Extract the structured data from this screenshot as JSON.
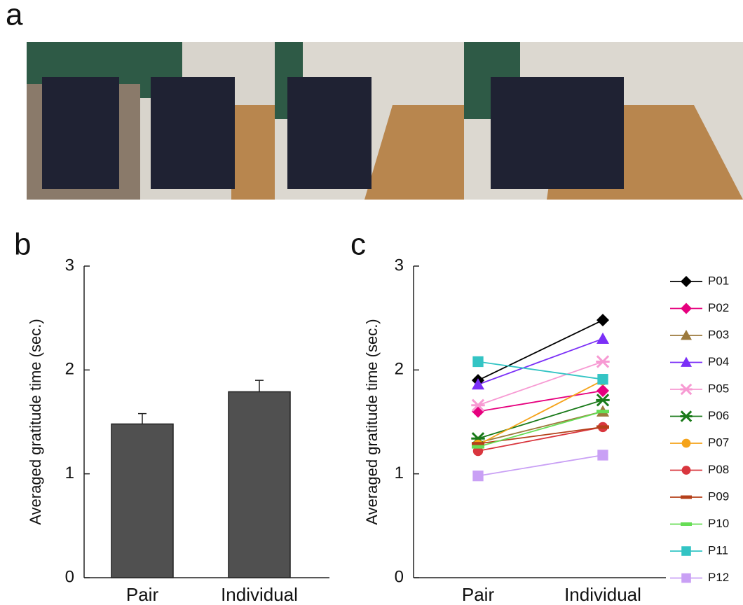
{
  "panel_labels": [
    "a",
    "b",
    "c"
  ],
  "chart_data": [
    {
      "type": "bar",
      "ylabel": "Averaged gratitude time (sec.)",
      "categories": [
        "Pair",
        "Individual"
      ],
      "values": [
        1.48,
        1.79
      ],
      "errors": [
        0.1,
        0.11
      ],
      "color": "#505050",
      "ylim": [
        0,
        3
      ],
      "yticks": [
        0,
        1,
        2,
        3
      ]
    },
    {
      "type": "line",
      "ylabel": "Averaged gratitude time (sec.)",
      "categories": [
        "Pair",
        "Individual"
      ],
      "ylim": [
        0,
        3
      ],
      "yticks": [
        0,
        1,
        2,
        3
      ],
      "series": [
        {
          "name": "P01",
          "color": "#000000",
          "marker": "diamond",
          "values": [
            1.9,
            2.48
          ]
        },
        {
          "name": "P02",
          "color": "#e6007e",
          "marker": "diamond",
          "values": [
            1.6,
            1.8
          ]
        },
        {
          "name": "P03",
          "color": "#9c7a3c",
          "marker": "triangle",
          "values": [
            1.3,
            1.6
          ]
        },
        {
          "name": "P04",
          "color": "#7b2ff7",
          "marker": "triangle",
          "values": [
            1.86,
            2.3
          ]
        },
        {
          "name": "P05",
          "color": "#f79ad3",
          "marker": "asterisk",
          "values": [
            1.66,
            2.08
          ]
        },
        {
          "name": "P06",
          "color": "#1a7a1a",
          "marker": "asterisk",
          "values": [
            1.34,
            1.71
          ]
        },
        {
          "name": "P07",
          "color": "#f5a31a",
          "marker": "circle",
          "values": [
            1.28,
            1.9
          ]
        },
        {
          "name": "P08",
          "color": "#d9363e",
          "marker": "circle",
          "values": [
            1.22,
            1.45
          ]
        },
        {
          "name": "P09",
          "color": "#b5401a",
          "marker": "dash",
          "values": [
            1.29,
            1.45
          ]
        },
        {
          "name": "P10",
          "color": "#66dd55",
          "marker": "dash",
          "values": [
            1.26,
            1.6
          ]
        },
        {
          "name": "P11",
          "color": "#33c4c4",
          "marker": "square",
          "values": [
            2.08,
            1.91
          ]
        },
        {
          "name": "P12",
          "color": "#c9a0f5",
          "marker": "square",
          "values": [
            0.98,
            1.18
          ]
        }
      ]
    }
  ]
}
